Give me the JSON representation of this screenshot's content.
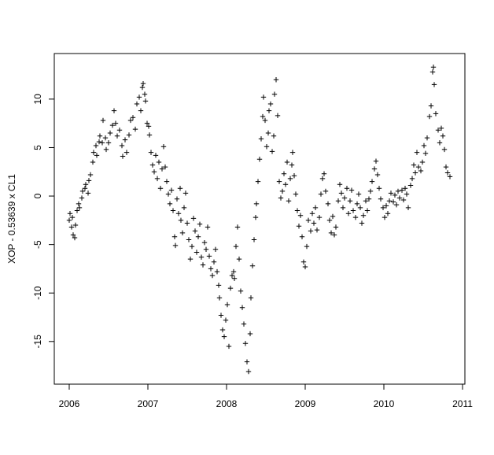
{
  "chart_data": {
    "type": "scatter",
    "y_label": "XOP - 0.53639 x CL1",
    "marker": "+",
    "color": "#000000",
    "xlim": [
      2005.81,
      2011.03
    ],
    "ylim": [
      -19.4,
      14.7
    ],
    "xticks": [
      2006,
      2007,
      2008,
      2009,
      2010,
      2011
    ],
    "yticks": [
      -15,
      -10,
      -5,
      0,
      5,
      10
    ],
    "x": [
      2006.0,
      2006.01,
      2006.03,
      2006.04,
      2006.05,
      2006.07,
      2006.08,
      2006.1,
      2006.12,
      2006.13,
      2006.16,
      2006.17,
      2006.2,
      2006.21,
      2006.24,
      2006.25,
      2006.27,
      2006.3,
      2006.31,
      2006.34,
      2006.35,
      2006.38,
      2006.39,
      2006.42,
      2006.43,
      2006.46,
      2006.47,
      2006.5,
      2006.52,
      2006.55,
      2006.57,
      2006.59,
      2006.61,
      2006.64,
      2006.67,
      2006.68,
      2006.71,
      2006.73,
      2006.76,
      2006.78,
      2006.81,
      2006.84,
      2006.86,
      2006.89,
      2006.91,
      2006.93,
      2006.94,
      2006.96,
      2006.97,
      2006.99,
      2007.01,
      2007.02,
      2007.04,
      2007.06,
      2007.08,
      2007.1,
      2007.12,
      2007.14,
      2007.16,
      2007.18,
      2007.2,
      2007.22,
      2007.24,
      2007.26,
      2007.28,
      2007.3,
      2007.32,
      2007.34,
      2007.35,
      2007.37,
      2007.39,
      2007.41,
      2007.42,
      2007.44,
      2007.46,
      2007.48,
      2007.5,
      2007.52,
      2007.54,
      2007.56,
      2007.58,
      2007.6,
      2007.62,
      2007.64,
      2007.66,
      2007.68,
      2007.7,
      2007.72,
      2007.74,
      2007.76,
      2007.78,
      2007.8,
      2007.82,
      2007.84,
      2007.86,
      2007.88,
      2007.9,
      2007.91,
      2007.93,
      2007.95,
      2007.97,
      2007.99,
      2008.01,
      2008.03,
      2008.05,
      2008.07,
      2008.09,
      2008.1,
      2008.12,
      2008.14,
      2008.16,
      2008.18,
      2008.2,
      2008.22,
      2008.24,
      2008.26,
      2008.28,
      2008.3,
      2008.31,
      2008.33,
      2008.35,
      2008.37,
      2008.38,
      2008.4,
      2008.42,
      2008.44,
      2008.46,
      2008.47,
      2008.49,
      2008.51,
      2008.53,
      2008.54,
      2008.56,
      2008.58,
      2008.6,
      2008.61,
      2008.63,
      2008.65,
      2008.67,
      2008.69,
      2008.71,
      2008.73,
      2008.75,
      2008.77,
      2008.79,
      2008.81,
      2008.83,
      2008.84,
      2008.86,
      2008.88,
      2008.9,
      2008.92,
      2008.94,
      2008.96,
      2008.98,
      2009.0,
      2009.02,
      2009.04,
      2009.07,
      2009.09,
      2009.11,
      2009.13,
      2009.15,
      2009.18,
      2009.2,
      2009.22,
      2009.24,
      2009.26,
      2009.29,
      2009.31,
      2009.33,
      2009.35,
      2009.37,
      2009.39,
      2009.42,
      2009.44,
      2009.46,
      2009.48,
      2009.5,
      2009.53,
      2009.55,
      2009.57,
      2009.59,
      2009.61,
      2009.64,
      2009.66,
      2009.68,
      2009.7,
      2009.72,
      2009.74,
      2009.77,
      2009.79,
      2009.81,
      2009.83,
      2009.85,
      2009.88,
      2009.9,
      2009.92,
      2009.94,
      2009.96,
      2009.99,
      2010.01,
      2010.03,
      2010.05,
      2010.07,
      2010.09,
      2010.12,
      2010.14,
      2010.16,
      2010.18,
      2010.2,
      2010.23,
      2010.25,
      2010.27,
      2010.29,
      2010.31,
      2010.34,
      2010.36,
      2010.38,
      2010.4,
      2010.42,
      2010.44,
      2010.47,
      2010.49,
      2010.51,
      2010.53,
      2010.55,
      2010.58,
      2010.6,
      2010.62,
      2010.63,
      2010.64,
      2010.66,
      2010.69,
      2010.71,
      2010.73,
      2010.75,
      2010.77,
      2010.79,
      2010.81,
      2010.84
    ],
    "y": [
      -2.5,
      -1.8,
      -3.2,
      -2.2,
      -4,
      -4.3,
      -3,
      -1.5,
      -0.8,
      -1.2,
      -0.2,
      0.5,
      0.8,
      1.2,
      0.3,
      1.6,
      2.2,
      3.5,
      4.5,
      5.2,
      4.2,
      5.6,
      6.2,
      5.5,
      7.8,
      6,
      4.8,
      5.5,
      6.5,
      7.3,
      8.8,
      7.5,
      6.2,
      6.8,
      5.2,
      4.1,
      5.8,
      4.5,
      6.3,
      7.8,
      8.1,
      6.9,
      9.5,
      10.2,
      8.8,
      11.2,
      11.6,
      10.5,
      9.8,
      7.5,
      7.2,
      6.3,
      4.5,
      3.2,
      2.5,
      4.2,
      1.8,
      3.5,
      0.8,
      2.8,
      5.1,
      3.0,
      1.5,
      0.2,
      -0.8,
      0.6,
      -1.5,
      -4.2,
      -5.1,
      -0.3,
      -1.8,
      0.8,
      -2.5,
      -3.8,
      -1.2,
      0.3,
      -2.8,
      -4.5,
      -6.5,
      -5.2,
      -2.3,
      -3.6,
      -5.8,
      -4.2,
      -2.9,
      -6.3,
      -7.1,
      -4.8,
      -5.5,
      -3.2,
      -6.2,
      -7.5,
      -8.2,
      -6.8,
      -5.5,
      -7.8,
      -9.2,
      -10.5,
      -12.3,
      -13.8,
      -14.5,
      -12.8,
      -11.2,
      -15.5,
      -9.5,
      -8.2,
      -7.8,
      -8.5,
      -5.2,
      -3.2,
      -6.5,
      -9.8,
      -11.5,
      -13.2,
      -15.2,
      -17.1,
      -18.1,
      -14.2,
      -10.5,
      -7.2,
      -4.5,
      -2.2,
      -0.8,
      1.5,
      3.8,
      5.9,
      8.2,
      10.2,
      7.8,
      5.1,
      6.5,
      8.8,
      9.5,
      4.6,
      6.2,
      10.5,
      12.0,
      8.3,
      1.5,
      -0.2,
      0.5,
      2.3,
      1.2,
      3.5,
      -0.5,
      1.8,
      3.2,
      4.5,
      2.1,
      0.2,
      -1.5,
      -3.1,
      -2.0,
      -4.2,
      -6.8,
      -7.3,
      -5.2,
      -2.5,
      -3.6,
      -1.8,
      -2.8,
      -1.2,
      -3.5,
      -2.2,
      0.2,
      1.8,
      2.3,
      0.5,
      -0.8,
      -2.5,
      -3.8,
      -2.1,
      -4.0,
      -3.2,
      -0.5,
      1.2,
      0.3,
      -1.2,
      -0.2,
      0.8,
      -1.8,
      -0.5,
      0.6,
      -1.5,
      -2.2,
      -0.8,
      0.2,
      -1.2,
      -2.8,
      -2.0,
      -0.5,
      -1.5,
      -0.3,
      0.5,
      1.5,
      2.8,
      3.6,
      2.2,
      0.8,
      -0.3,
      -1.2,
      -2.2,
      -1.0,
      -1.8,
      -0.5,
      0.3,
      -0.6,
      0.1,
      -0.9,
      0.5,
      -0.2,
      0.6,
      -0.4,
      0.8,
      0.2,
      -1.2,
      1.1,
      1.8,
      3.2,
      2.4,
      4.5,
      3.0,
      2.6,
      3.5,
      5.2,
      4.4,
      6.0,
      8.2,
      9.3,
      12.8,
      13.3,
      11.5,
      8.5,
      6.8,
      5.5,
      7.0,
      6.2,
      4.8,
      3.0,
      2.4,
      2.0
    ]
  }
}
